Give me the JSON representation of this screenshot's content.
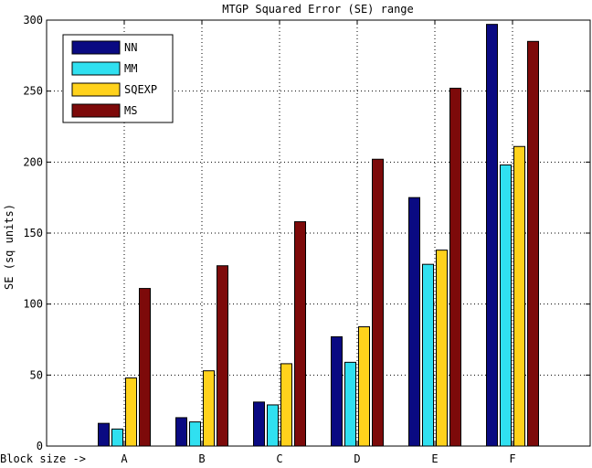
{
  "chart_data": {
    "type": "bar",
    "title": "MTGP Squared Error (SE) range",
    "xlabel": "Block size ->",
    "ylabel": "SE (sq units)",
    "categories": [
      "A",
      "B",
      "C",
      "D",
      "E",
      "F"
    ],
    "ylim": [
      0,
      300
    ],
    "yticks": [
      0,
      50,
      100,
      150,
      200,
      250,
      300
    ],
    "grid": true,
    "legend_position": "top-left",
    "series": [
      {
        "name": "NN",
        "color": "#0a0a82",
        "values": [
          16,
          20,
          31,
          77,
          175,
          297
        ]
      },
      {
        "name": "MM",
        "color": "#30e0f0",
        "values": [
          12,
          17,
          29,
          59,
          128,
          198
        ]
      },
      {
        "name": "SQEXP",
        "color": "#ffd21c",
        "values": [
          48,
          53,
          58,
          84,
          138,
          211
        ]
      },
      {
        "name": "MS",
        "color": "#7d0a0a",
        "values": [
          111,
          127,
          158,
          202,
          252,
          285
        ]
      }
    ]
  }
}
